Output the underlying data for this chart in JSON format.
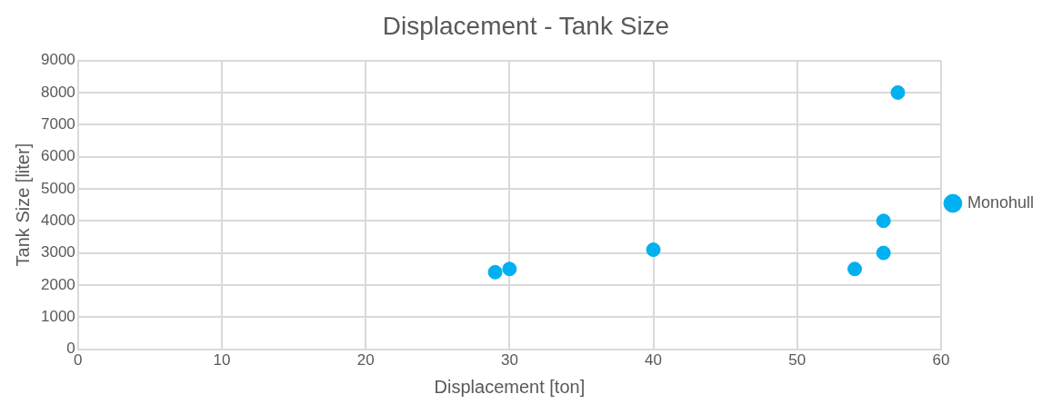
{
  "chart_data": {
    "type": "scatter",
    "title": "Displacement - Tank Size",
    "xlabel": "Displacement [ton]",
    "ylabel": "Tank Size [liter]",
    "series": [
      {
        "name": "Monohull",
        "color": "#00b0f0",
        "x": [
          29,
          30,
          40,
          54,
          56,
          56,
          57
        ],
        "values": [
          2400,
          2500,
          3100,
          2500,
          3000,
          4000,
          8000
        ]
      }
    ],
    "xlim": [
      0,
      60
    ],
    "xticks": [
      0,
      10,
      20,
      30,
      40,
      50,
      60
    ],
    "ylim": [
      0,
      9000
    ],
    "yticks": [
      0,
      1000,
      2000,
      3000,
      4000,
      5000,
      6000,
      7000,
      8000,
      9000
    ],
    "grid": true,
    "legend": "right",
    "marker": "circle"
  }
}
